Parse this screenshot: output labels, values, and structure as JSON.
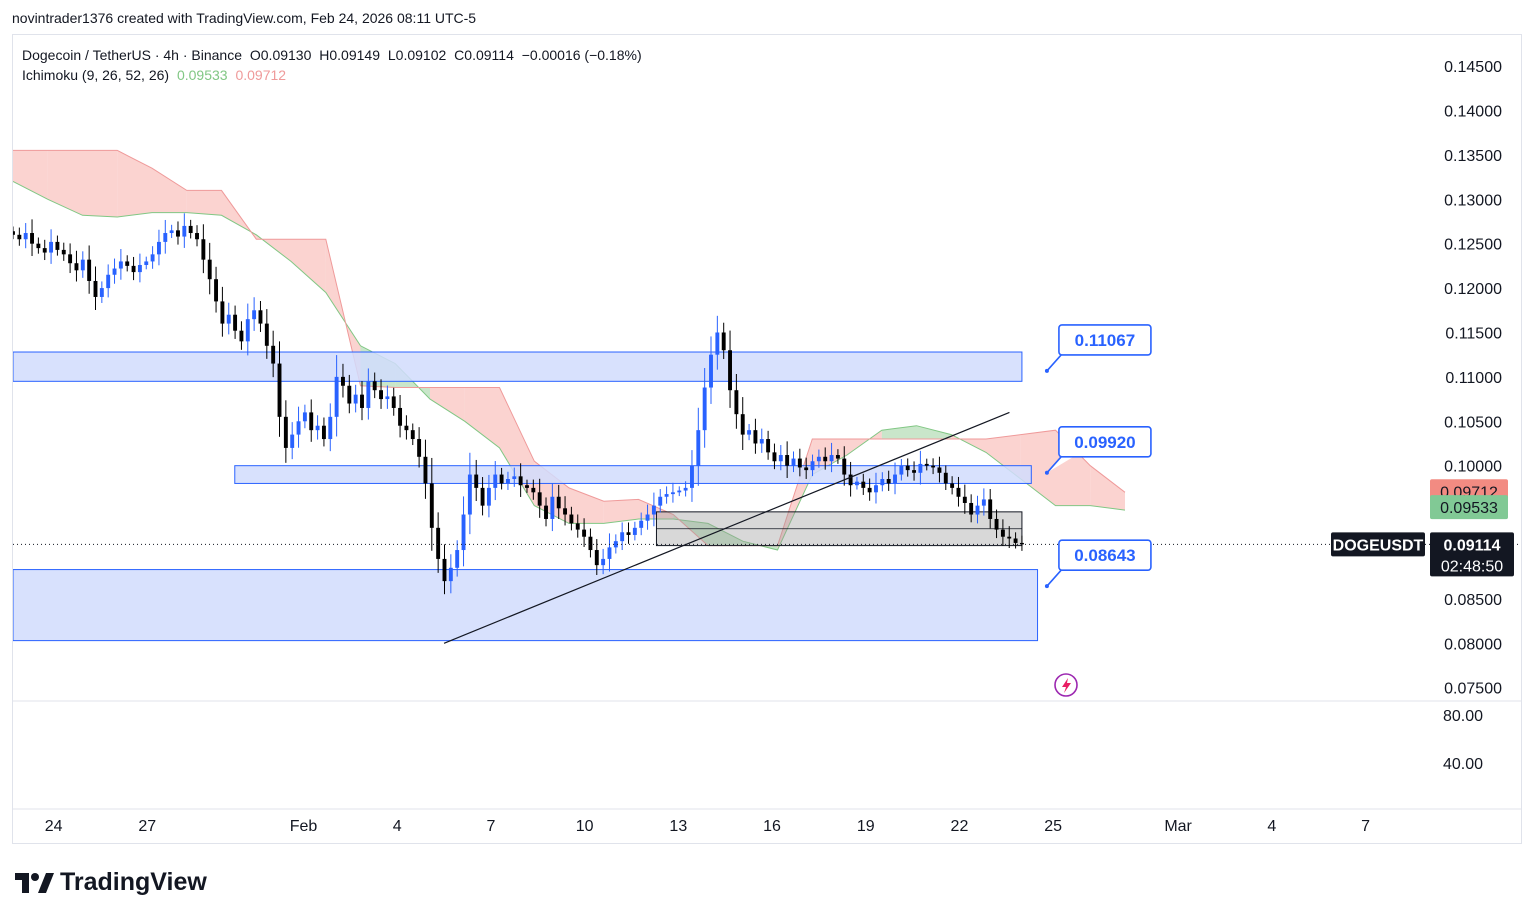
{
  "attribution": "novintrader1376 created with TradingView.com, Feb 24, 2026 08:11 UTC-5",
  "legend": {
    "symbol": "Dogecoin / TetherUS · 4h · Binance",
    "open": "O0.09130",
    "high": "H0.09149",
    "low": "L0.09102",
    "close": "C0.09114",
    "change": "−0.00016 (−0.18%)",
    "indicator": "Ichimoku (9, 26, 52, 26)",
    "span_a": "0.09533",
    "span_b": "0.09712"
  },
  "branding": "TradingView",
  "colors": {
    "up": "#2962ff",
    "down": "#000000",
    "zone_fill": "#d1dcfd",
    "zone_stroke": "#2962ff",
    "cloud_bull": "#a5d6a7",
    "cloud_bear": "#f8b6b0",
    "label_bear": "#f28b82",
    "label_bull": "#81c995"
  },
  "chart_data": {
    "type": "candlestick",
    "symbol": "DOGEUSDT",
    "timeframe": "4h",
    "ylim": [
      0.0735,
      0.1485
    ],
    "y_ticks": [
      "0.14500",
      "0.14000",
      "0.13500",
      "0.13000",
      "0.12500",
      "0.12000",
      "0.11500",
      "0.11000",
      "0.10500",
      "0.10000",
      "0.08500",
      "0.08000",
      "0.07500"
    ],
    "x_ticks": [
      "24",
      "27",
      "Feb",
      "4",
      "7",
      "10",
      "13",
      "16",
      "19",
      "22",
      "25",
      "Mar",
      "4",
      "7"
    ],
    "x_tick_days": [
      0,
      3,
      8,
      11,
      14,
      17,
      20,
      23,
      26,
      29,
      32,
      36,
      39,
      42
    ],
    "x_range_days": [
      -1.3,
      44.0
    ],
    "last_data_day": 31.0,
    "oscillator_ticks": [
      "80.00",
      "40.00"
    ],
    "price_labels": {
      "span_b": "0.09712",
      "span_a": "0.09533",
      "symbol": "DOGEUSDT",
      "last": "0.09114",
      "countdown": "02:48:50"
    },
    "last_price": 0.09114,
    "closes": [
      0.126,
      0.1255,
      0.1262,
      0.125,
      0.1245,
      0.124,
      0.1252,
      0.1243,
      0.1238,
      0.1228,
      0.122,
      0.1232,
      0.1208,
      0.119,
      0.12,
      0.1215,
      0.1222,
      0.123,
      0.1225,
      0.1218,
      0.1226,
      0.123,
      0.1238,
      0.1252,
      0.1262,
      0.1265,
      0.1258,
      0.127,
      0.1262,
      0.1255,
      0.1232,
      0.121,
      0.1185,
      0.116,
      0.117,
      0.1152,
      0.114,
      0.1165,
      0.1175,
      0.116,
      0.1135,
      0.1115,
      0.1055,
      0.102,
      0.1035,
      0.105,
      0.106,
      0.104,
      0.1045,
      0.103,
      0.1055,
      0.11,
      0.109,
      0.107,
      0.108,
      0.1065,
      0.1095,
      0.1085,
      0.1075,
      0.1078,
      0.1065,
      0.1045,
      0.104,
      0.103,
      0.101,
      0.098,
      0.093,
      0.0895,
      0.087,
      0.0885,
      0.0905,
      0.0945,
      0.099,
      0.0975,
      0.0955,
      0.0975,
      0.099,
      0.098,
      0.0985,
      0.0988,
      0.0978,
      0.0975,
      0.097,
      0.0955,
      0.094,
      0.0965,
      0.0952,
      0.0945,
      0.0935,
      0.0928,
      0.092,
      0.0905,
      0.0888,
      0.0895,
      0.0908,
      0.0915,
      0.0925,
      0.0922,
      0.093,
      0.0938,
      0.0945,
      0.0955,
      0.0965,
      0.0968,
      0.097,
      0.0972,
      0.0975,
      0.1,
      0.104,
      0.1088,
      0.1125,
      0.115,
      0.113,
      0.1085,
      0.1058,
      0.1035,
      0.104,
      0.1025,
      0.103,
      0.1015,
      0.1005,
      0.1012,
      0.1,
      0.1008,
      0.0998,
      0.0995,
      0.1005,
      0.101,
      0.1005,
      0.1012,
      0.1008,
      0.099,
      0.0978,
      0.0982,
      0.0975,
      0.097,
      0.0978,
      0.0985,
      0.098,
      0.099,
      0.1,
      0.0995,
      0.0992,
      0.1002,
      0.1,
      0.0998,
      0.0992,
      0.098,
      0.0975,
      0.0965,
      0.0958,
      0.0945,
      0.0955,
      0.0962,
      0.094,
      0.0928,
      0.092,
      0.0918,
      0.0913,
      0.09114
    ],
    "ichimoku_span_a": [
      0.132,
      0.13,
      0.1282,
      0.128,
      0.1285,
      0.1285,
      0.1282,
      0.126,
      0.123,
      0.1195,
      0.1135,
      0.1115,
      0.1075,
      0.105,
      0.102,
      0.0955,
      0.0935,
      0.0935,
      0.094,
      0.094,
      0.0935,
      0.0915,
      0.0905,
      0.099,
      0.1012,
      0.104,
      0.1045,
      0.1035,
      0.1015,
      0.0985,
      0.0955,
      0.0955,
      0.095
    ],
    "ichimoku_span_b": [
      0.1355,
      0.1355,
      0.1355,
      0.1355,
      0.1335,
      0.131,
      0.131,
      0.1255,
      0.1255,
      0.1255,
      0.109,
      0.1088,
      0.1088,
      0.1088,
      0.1088,
      0.1005,
      0.0975,
      0.096,
      0.0962,
      0.0945,
      0.091,
      0.091,
      0.091,
      0.103,
      0.103,
      0.103,
      0.103,
      0.103,
      0.103,
      0.1035,
      0.104,
      0.1,
      0.097
    ],
    "zones": [
      {
        "from_day": -1.3,
        "to_day": 31.0,
        "low": 0.1095,
        "high": 0.1128
      },
      {
        "from_day": 5.8,
        "to_day": 31.3,
        "low": 0.098,
        "high": 0.1
      },
      {
        "from_day": -1.3,
        "to_day": 31.5,
        "low": 0.0803,
        "high": 0.0883
      }
    ],
    "consolidation_box": {
      "from_day": 19.3,
      "to_day": 31.0,
      "low": 0.091,
      "high": 0.0948
    },
    "trendline": {
      "start_day": 12.5,
      "start_price": 0.08,
      "end_day": 30.6,
      "end_price": 0.106
    },
    "callouts": [
      {
        "label": "0.11067",
        "target_price": 0.11067
      },
      {
        "label": "0.09920",
        "target_price": 0.0992
      },
      {
        "label": "0.08643",
        "target_price": 0.08643
      }
    ]
  }
}
